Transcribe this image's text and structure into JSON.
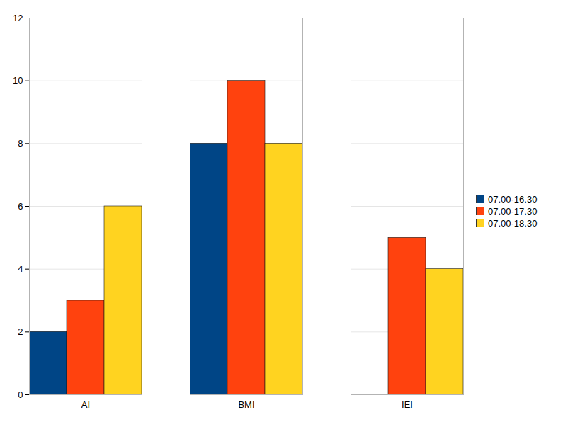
{
  "chart_data": {
    "type": "bar",
    "categories": [
      "AI",
      "BMI",
      "IEI"
    ],
    "series": [
      {
        "name": "07.00-16.30",
        "color": "#004586",
        "values": [
          2,
          8,
          0
        ]
      },
      {
        "name": "07.00-17.30",
        "color": "#ff420e",
        "values": [
          3,
          10,
          5
        ]
      },
      {
        "name": "07.00-18.30",
        "color": "#ffd320",
        "values": [
          6,
          8,
          4
        ]
      }
    ],
    "ylim": [
      0,
      12
    ],
    "yticks": [
      0,
      2,
      4,
      6,
      8,
      10,
      12
    ],
    "grid": true,
    "legend": "right"
  }
}
